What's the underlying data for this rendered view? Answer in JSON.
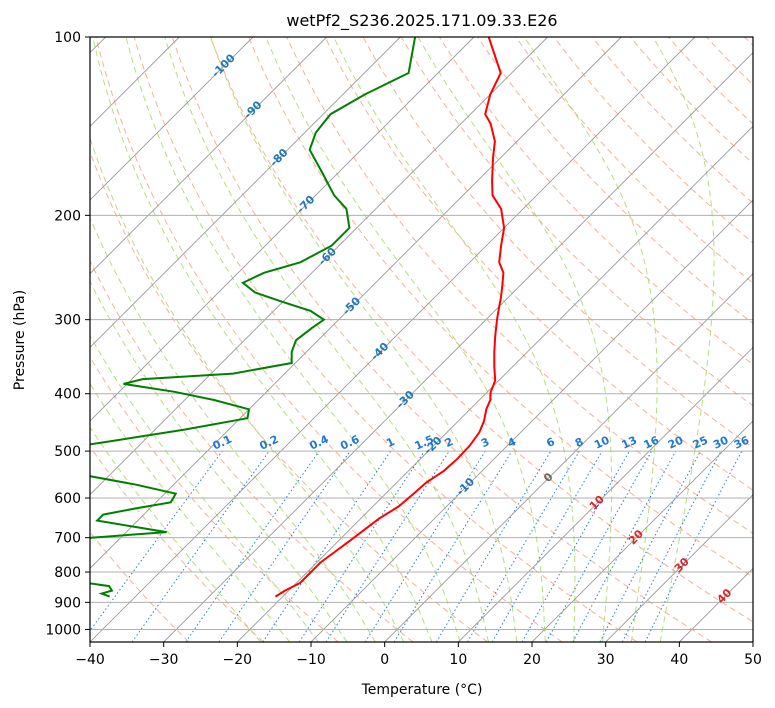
{
  "chart_data": {
    "type": "line",
    "title": "wetPf2_S236.2025.171.09.33.E26",
    "xlabel": "Temperature (°C)",
    "ylabel": "Pressure (hPa)",
    "xlim": [
      -40,
      50
    ],
    "ylim_pressure": [
      1050,
      100
    ],
    "y_scale": "log",
    "x_ticks": [
      "−40",
      "−30",
      "−20",
      "−10",
      "0",
      "10",
      "20",
      "30",
      "40",
      "50"
    ],
    "y_ticks": [
      "100",
      "200",
      "300",
      "400",
      "500",
      "600",
      "700",
      "800",
      "900",
      "1000"
    ],
    "grid": true,
    "skew_t": true,
    "colors": {
      "temperature": "#ff0000",
      "dewpoint": "#008000",
      "dry_adiabat": "#f4a582",
      "moist_adiabat": "#a6d96a",
      "mixing_ratio": "#1f78d4",
      "isotherm_label": "#1f77b4",
      "warm_isotherm_label": "#d62728"
    },
    "series": [
      {
        "name": "temperature",
        "pressure": [
          880,
          860,
          835,
          800,
          770,
          740,
          710,
          680,
          650,
          620,
          590,
          565,
          540,
          515,
          490,
          465,
          445,
          425,
          410,
          398,
          380,
          360,
          340,
          320,
          300,
          285,
          275,
          262,
          250,
          240,
          225,
          210,
          195,
          185,
          175,
          160,
          150,
          140,
          135,
          125,
          115,
          100
        ],
        "temp_c": [
          -21,
          -20.5,
          -19.5,
          -19.5,
          -19.5,
          -19,
          -18.5,
          -18,
          -17.5,
          -16.5,
          -16.2,
          -16,
          -15.2,
          -15,
          -15.1,
          -15.6,
          -16.5,
          -17.8,
          -18.5,
          -19.5,
          -20.5,
          -22.5,
          -24.5,
          -26.5,
          -28.5,
          -30,
          -31,
          -32.5,
          -34,
          -36,
          -38,
          -40,
          -43,
          -46,
          -48,
          -51,
          -53,
          -56,
          -58,
          -60,
          -61.5,
          -68
        ]
      },
      {
        "name": "dewpoint",
        "pressure": [
          880,
          870,
          860,
          845,
          830,
          815,
          805,
          795,
          785,
          770,
          760,
          745,
          730,
          715,
          700,
          685,
          670,
          655,
          640,
          625,
          610,
          590,
          570,
          550,
          530,
          515,
          505,
          495,
          480,
          460,
          440,
          425,
          410,
          397,
          385,
          378,
          370,
          355,
          340,
          325,
          310,
          300,
          290,
          280,
          270,
          260,
          250,
          240,
          225,
          210,
          195,
          185,
          170,
          155,
          145,
          135,
          125,
          115,
          100
        ],
        "temp_c": [
          -43.5,
          -45,
          -44,
          -45,
          -50,
          -55,
          -63,
          -61,
          -55,
          -52.5,
          -57.5,
          -62,
          -63.2,
          -60,
          -54,
          -44.5,
          -50,
          -55.5,
          -55.5,
          -52,
          -48,
          -48.5,
          -55,
          -63,
          -68,
          -70.5,
          -71,
          -70,
          -64,
          -56,
          -49,
          -50,
          -56,
          -62.5,
          -70.5,
          -68.5,
          -57,
          -50.5,
          -52,
          -53,
          -52.5,
          -52,
          -55,
          -60,
          -65,
          -68,
          -66.5,
          -63,
          -61,
          -61,
          -64,
          -67.5,
          -72,
          -77,
          -78.5,
          -79,
          -77,
          -74,
          -78
        ]
      }
    ],
    "isotherm_labels": [
      "-100",
      "-90",
      "-80",
      "-70",
      "-60",
      "-50",
      "-40",
      "-30",
      "-20",
      "-10"
    ],
    "warm_isotherm_labels": [
      "0",
      "10",
      "20",
      "30",
      "40"
    ],
    "mixing_ratio_labels": [
      "0.1",
      "0.2",
      "0.4",
      "0.6",
      "1",
      "1.5",
      "2",
      "3",
      "4",
      "6",
      "8",
      "10",
      "13",
      "16",
      "20",
      "25",
      "30",
      "36"
    ]
  }
}
